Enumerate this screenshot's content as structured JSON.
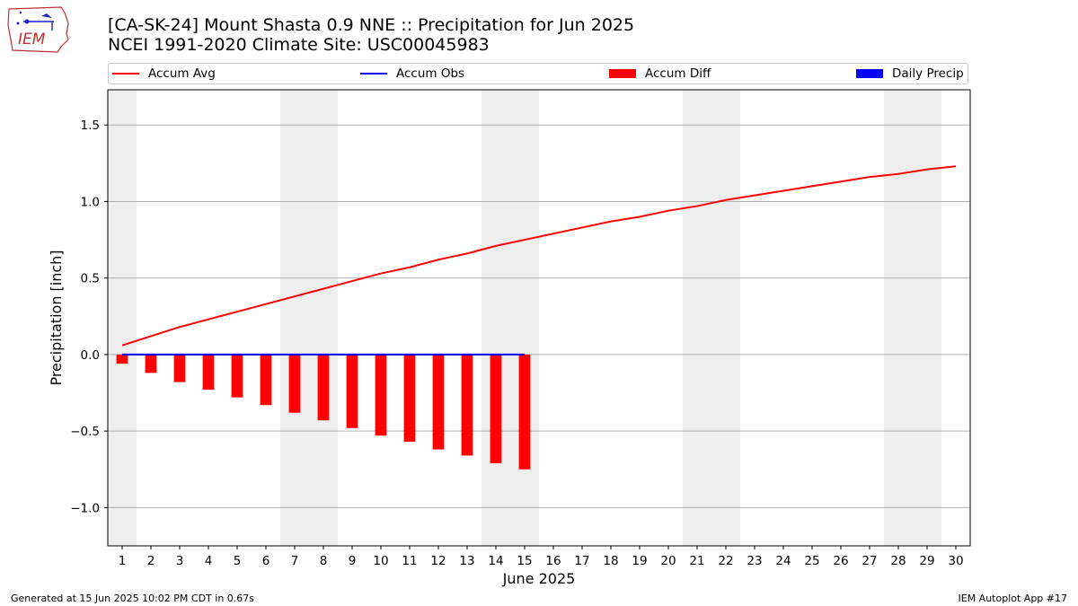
{
  "header": {
    "title_line1": "[CA-SK-24] Mount Shasta 0.9 NNE :: Precipitation for Jun 2025",
    "title_line2": "NCEI 1991-2020 Climate Site: USC00045983"
  },
  "logo": {
    "text": "IEM",
    "icon": "iem-iowa-map-logo"
  },
  "colors": {
    "accum_avg": "#ff0000",
    "accum_obs": "#0000ff",
    "accum_diff": "#ff0000",
    "daily_precip": "#0000ff",
    "weekend_shade": "#eeeeee",
    "grid": "#b0b0b0"
  },
  "legend": [
    {
      "label": "Accum Avg",
      "kind": "line",
      "color": "#ff0000"
    },
    {
      "label": "Accum Obs",
      "kind": "line",
      "color": "#0000ff"
    },
    {
      "label": "Accum Diff",
      "kind": "bar",
      "color": "#ff0000"
    },
    {
      "label": "Daily Precip",
      "kind": "bar",
      "color": "#0000ff"
    }
  ],
  "chart_data": {
    "type": "bar",
    "xlabel": "June 2025",
    "ylabel": "Precipitation [inch]",
    "xlim": [
      0.5,
      30.5
    ],
    "ylim": [
      -1.25,
      1.73
    ],
    "x_ticks": [
      1,
      2,
      3,
      4,
      5,
      6,
      7,
      8,
      9,
      10,
      11,
      12,
      13,
      14,
      15,
      16,
      17,
      18,
      19,
      20,
      21,
      22,
      23,
      24,
      25,
      26,
      27,
      28,
      29,
      30
    ],
    "y_ticks": [
      -1.0,
      -0.5,
      0.0,
      0.5,
      1.0,
      1.5
    ],
    "y_tick_labels": [
      "−1.0",
      "−0.5",
      "0.0",
      "0.5",
      "1.0",
      "1.5"
    ],
    "grid": "horizontal",
    "legend_position": "top",
    "weekend_days": [
      1,
      7,
      8,
      14,
      15,
      21,
      22,
      28,
      29
    ],
    "series": [
      {
        "name": "Accum Avg",
        "type": "line",
        "x": [
          1,
          2,
          3,
          4,
          5,
          6,
          7,
          8,
          9,
          10,
          11,
          12,
          13,
          14,
          15,
          16,
          17,
          18,
          19,
          20,
          21,
          22,
          23,
          24,
          25,
          26,
          27,
          28,
          29,
          30
        ],
        "values": [
          0.06,
          0.12,
          0.18,
          0.23,
          0.28,
          0.33,
          0.38,
          0.43,
          0.48,
          0.53,
          0.57,
          0.62,
          0.66,
          0.71,
          0.75,
          0.79,
          0.83,
          0.87,
          0.9,
          0.94,
          0.97,
          1.01,
          1.04,
          1.07,
          1.1,
          1.13,
          1.16,
          1.18,
          1.21,
          1.23
        ]
      },
      {
        "name": "Accum Obs",
        "type": "line",
        "x": [
          1,
          2,
          3,
          4,
          5,
          6,
          7,
          8,
          9,
          10,
          11,
          12,
          13,
          14,
          15
        ],
        "values": [
          0,
          0,
          0,
          0,
          0,
          0,
          0,
          0,
          0,
          0,
          0,
          0,
          0,
          0,
          0
        ]
      },
      {
        "name": "Accum Diff",
        "type": "bar",
        "x": [
          1,
          2,
          3,
          4,
          5,
          6,
          7,
          8,
          9,
          10,
          11,
          12,
          13,
          14,
          15
        ],
        "values": [
          -0.06,
          -0.12,
          -0.18,
          -0.23,
          -0.28,
          -0.33,
          -0.38,
          -0.43,
          -0.48,
          -0.53,
          -0.57,
          -0.62,
          -0.66,
          -0.71,
          -0.75
        ]
      },
      {
        "name": "Daily Precip",
        "type": "bar",
        "x": [
          1,
          2,
          3,
          4,
          5,
          6,
          7,
          8,
          9,
          10,
          11,
          12,
          13,
          14,
          15
        ],
        "values": [
          0,
          0,
          0,
          0,
          0,
          0,
          0,
          0,
          0,
          0,
          0,
          0,
          0,
          0,
          0
        ]
      }
    ]
  },
  "footer": {
    "left": "Generated at 15 Jun 2025 10:02 PM CDT in 0.67s",
    "right": "IEM Autoplot App #17"
  }
}
